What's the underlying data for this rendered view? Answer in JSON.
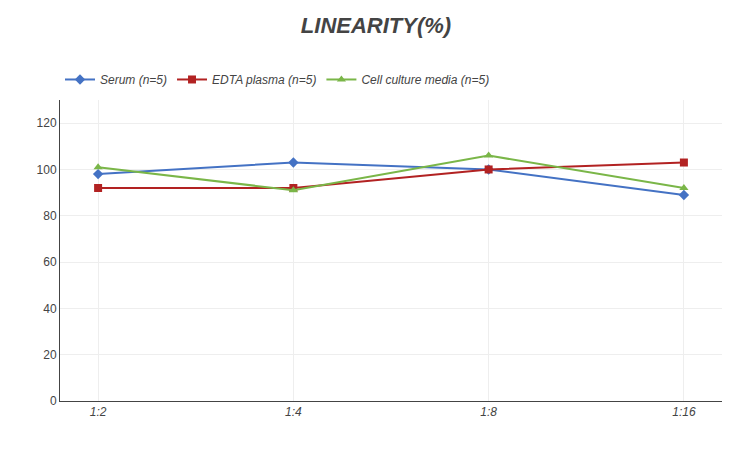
{
  "chart_data": {
    "type": "line",
    "title": "LINEARITY(%)",
    "categories": [
      "1:2",
      "1:4",
      "1:8",
      "1:16"
    ],
    "series": [
      {
        "name": "Serum (n=5)",
        "color": "#4472C4",
        "marker": "diamond",
        "values": [
          98,
          103,
          100,
          89
        ]
      },
      {
        "name": "EDTA plasma (n=5)",
        "color": "#B22222",
        "marker": "square",
        "values": [
          92,
          92,
          100,
          103
        ]
      },
      {
        "name": "Cell culture media (n=5)",
        "color": "#7AB648",
        "marker": "triangle",
        "values": [
          101,
          91,
          106,
          92
        ]
      }
    ],
    "ylim": [
      0,
      130
    ],
    "yticks": [
      0,
      20,
      40,
      60,
      80,
      100,
      120
    ],
    "grid": true,
    "legend": "top"
  }
}
